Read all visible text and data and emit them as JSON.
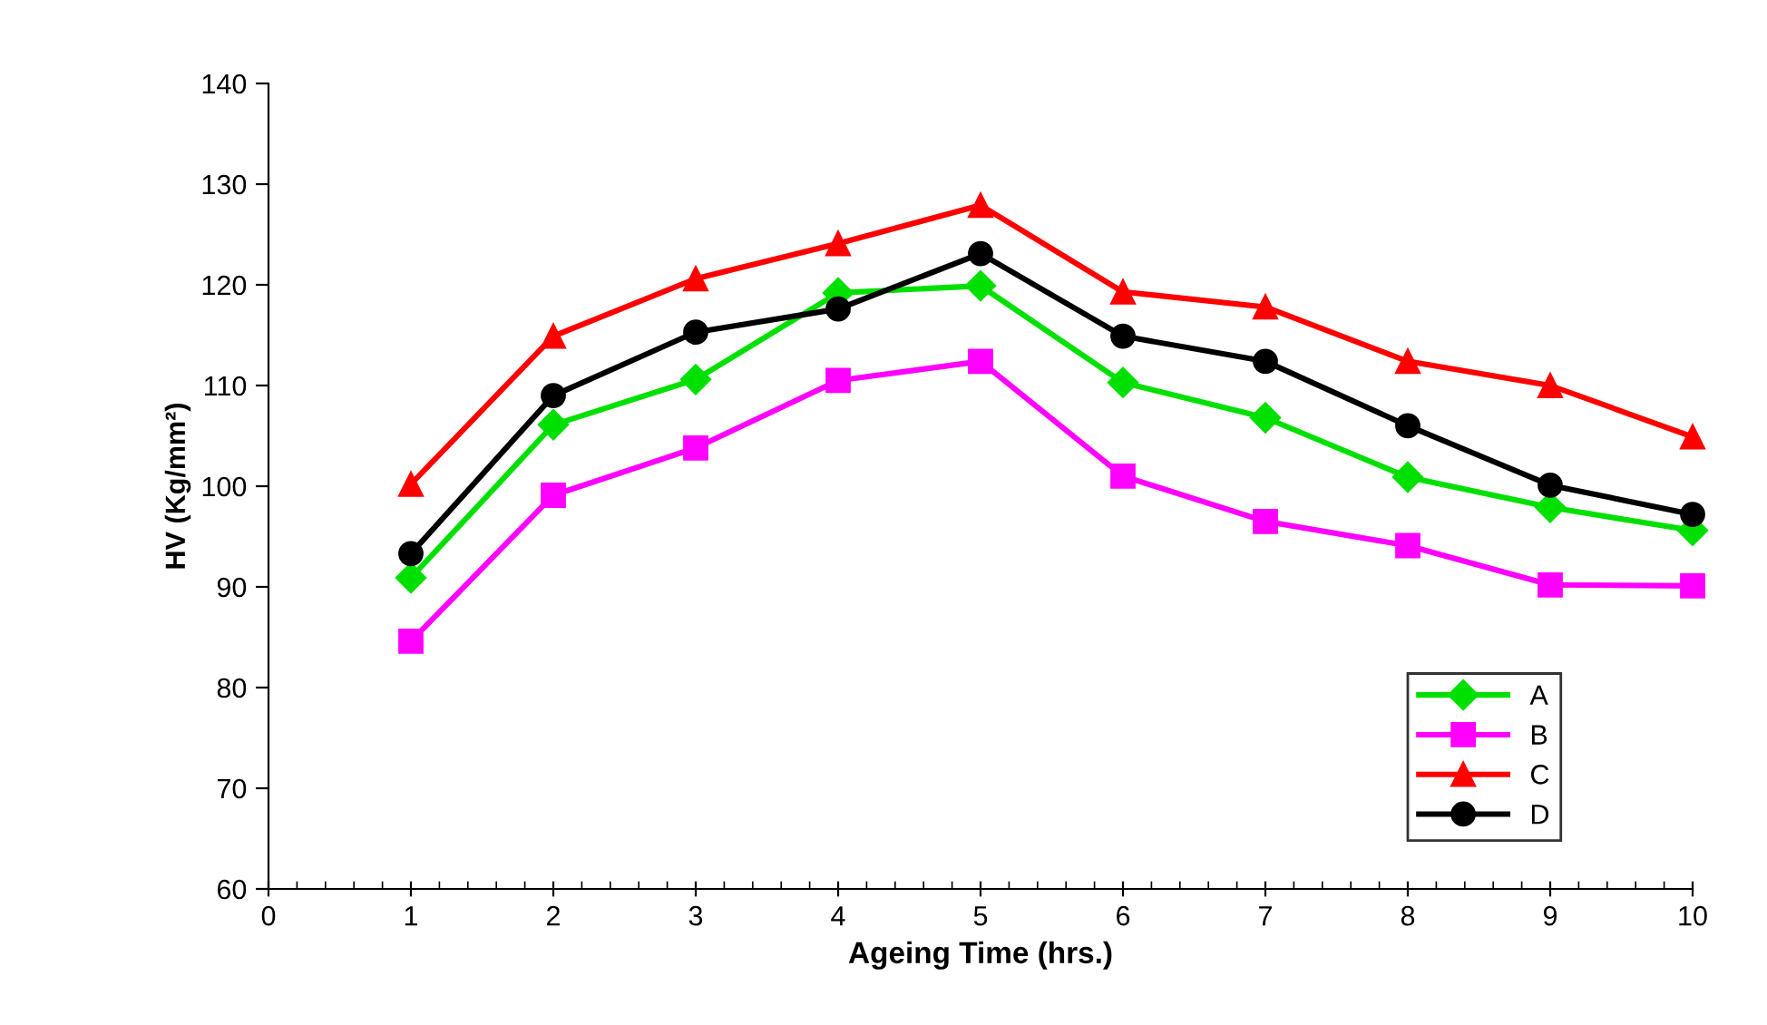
{
  "chart_data": {
    "type": "line",
    "xlabel": "Ageing Time (hrs.)",
    "ylabel": "HV (Kg/mm²)",
    "x": [
      1,
      2,
      3,
      4,
      5,
      6,
      7,
      8,
      9,
      10
    ],
    "series": [
      {
        "name": "A",
        "color": "#00e000",
        "marker": "diamond",
        "values": [
          90.9,
          106.1,
          110.6,
          119.2,
          119.9,
          110.3,
          106.8,
          100.9,
          97.9,
          95.6
        ]
      },
      {
        "name": "B",
        "color": "#ff00ff",
        "marker": "square",
        "values": [
          84.6,
          99.1,
          103.8,
          110.5,
          112.4,
          101.0,
          96.5,
          94.1,
          90.2,
          90.1
        ]
      },
      {
        "name": "C",
        "color": "#ff0000",
        "marker": "triangle",
        "values": [
          100.2,
          114.9,
          120.6,
          124.1,
          127.9,
          119.3,
          117.8,
          112.4,
          110.0,
          104.9
        ]
      },
      {
        "name": "D",
        "color": "#000000",
        "marker": "circle",
        "values": [
          93.3,
          109.0,
          115.3,
          117.6,
          123.1,
          114.9,
          112.4,
          106.0,
          100.1,
          97.2
        ]
      }
    ],
    "xlim": [
      0,
      10
    ],
    "xticks": [
      0,
      1,
      2,
      3,
      4,
      5,
      6,
      7,
      8,
      9,
      10
    ],
    "ylim": [
      60,
      140
    ],
    "yticks": [
      60,
      70,
      80,
      90,
      100,
      110,
      120,
      130,
      140
    ],
    "grid": false,
    "legend": "bottom right",
    "line_style": "solid"
  }
}
